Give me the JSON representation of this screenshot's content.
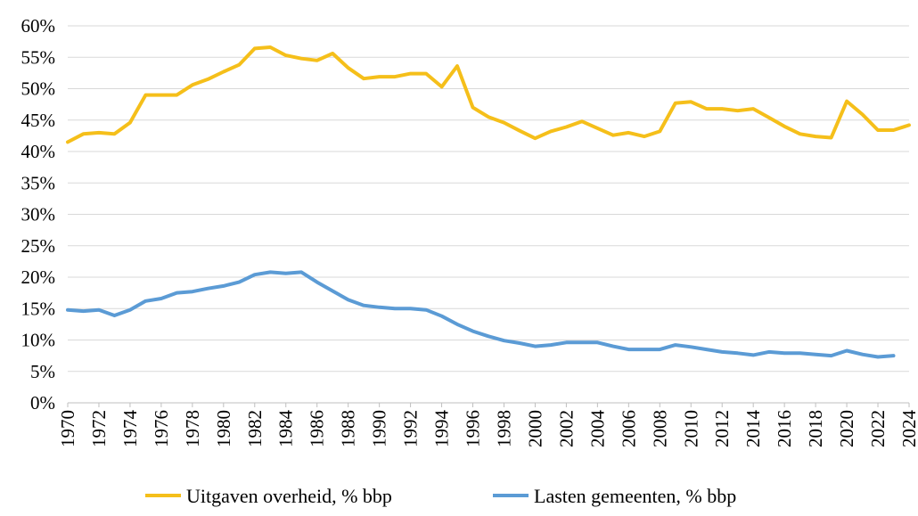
{
  "chart_data": {
    "type": "line",
    "title": "",
    "xlabel": "",
    "ylabel": "",
    "x": [
      1970,
      1971,
      1972,
      1973,
      1974,
      1975,
      1976,
      1977,
      1978,
      1979,
      1980,
      1981,
      1982,
      1983,
      1984,
      1985,
      1986,
      1987,
      1988,
      1989,
      1990,
      1991,
      1992,
      1993,
      1994,
      1995,
      1996,
      1997,
      1998,
      1999,
      2000,
      2001,
      2002,
      2003,
      2004,
      2005,
      2006,
      2007,
      2008,
      2009,
      2010,
      2011,
      2012,
      2013,
      2014,
      2015,
      2016,
      2017,
      2018,
      2019,
      2020,
      2021,
      2022,
      2023,
      2024
    ],
    "x_tick_labels": [
      "1970",
      "1972",
      "1974",
      "1976",
      "1978",
      "1980",
      "1982",
      "1984",
      "1986",
      "1988",
      "1990",
      "1992",
      "1994",
      "1996",
      "1998",
      "2000",
      "2002",
      "2004",
      "2006",
      "2008",
      "2010",
      "2012",
      "2014",
      "2016",
      "2018",
      "2020",
      "2022",
      "2024"
    ],
    "y_tick_labels": [
      "0%",
      "5%",
      "10%",
      "15%",
      "20%",
      "25%",
      "30%",
      "35%",
      "40%",
      "45%",
      "50%",
      "55%",
      "60%"
    ],
    "ylim": [
      0,
      60
    ],
    "y_unit": "%",
    "grid": true,
    "legend_position": "bottom",
    "series": [
      {
        "name": "Uitgaven overheid, % bbp",
        "color": "#f5bf1a",
        "values": [
          41.5,
          42.8,
          43.0,
          42.8,
          44.6,
          49.0,
          49.0,
          49.0,
          50.6,
          51.5,
          52.7,
          53.8,
          56.4,
          56.6,
          55.3,
          54.8,
          54.5,
          55.6,
          53.3,
          51.6,
          51.9,
          51.9,
          52.4,
          52.4,
          50.3,
          53.6,
          47.0,
          45.5,
          44.6,
          43.3,
          42.1,
          43.2,
          43.9,
          44.8,
          43.7,
          42.6,
          43.0,
          42.4,
          43.2,
          47.7,
          47.9,
          46.8,
          46.8,
          46.5,
          46.8,
          45.4,
          44.0,
          42.8,
          42.4,
          42.2,
          48.0,
          45.9,
          43.4,
          43.4,
          44.2
        ]
      },
      {
        "name": "Lasten gemeenten, % bbp",
        "color": "#5b9bd5",
        "values": [
          14.8,
          14.6,
          14.8,
          13.9,
          14.8,
          16.2,
          16.6,
          17.5,
          17.7,
          18.2,
          18.6,
          19.2,
          20.4,
          20.8,
          20.6,
          20.8,
          19.2,
          17.8,
          16.4,
          15.5,
          15.2,
          15.0,
          15.0,
          14.8,
          13.8,
          12.5,
          11.4,
          10.6,
          9.9,
          9.5,
          9.0,
          9.2,
          9.6,
          9.6,
          9.6,
          9.0,
          8.5,
          8.5,
          8.5,
          9.2,
          8.9,
          8.5,
          8.1,
          7.9,
          7.6,
          8.1,
          7.9,
          7.9,
          7.7,
          7.5,
          8.3,
          7.7,
          7.3,
          7.5,
          null
        ]
      }
    ]
  }
}
